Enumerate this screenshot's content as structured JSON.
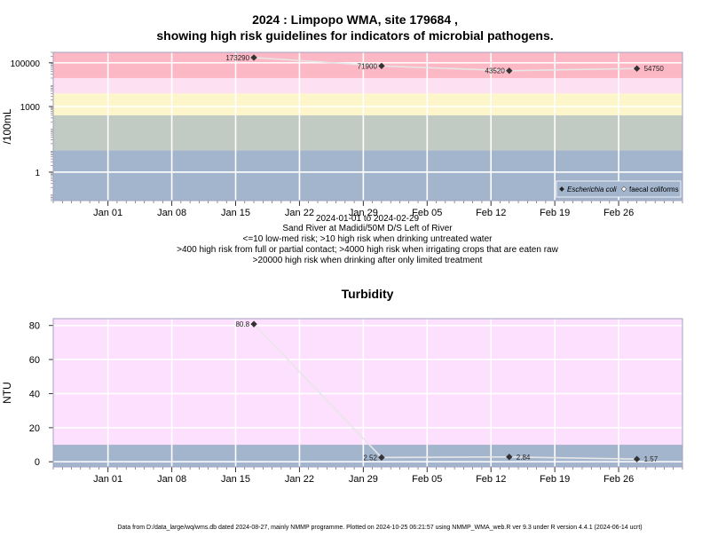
{
  "page": {
    "title_line1": "2024 : Limpopo WMA, site 179684 ,",
    "title_line2": "showing high risk guidelines for indicators of microbial pathogens.",
    "footer": "Data from D:/data_large/wq/wms.db dated 2024-08-27, mainly NMMP programme. Plotted on 2024-10-25 06:21:57 using NMMP_WMA_web.R ver 9.3 under R version 4.4.1 (2024-06-14 ucrt)"
  },
  "notes": [
    "2024-01-01 to 2024-02-29",
    "Sand River at Madidi/50M D/S Left of River",
    "<=10 low-med risk; >10 high risk when drinking untreated water",
    ">400 high risk from full or partial contact; >4000 high risk when irrigating crops that are eaten raw",
    ">20000 high risk when drinking after only limited treatment"
  ],
  "chart_data": [
    {
      "type": "line",
      "title": "",
      "ylabel": "/100mL",
      "y_scale": "log10",
      "ylim": [
        0.05,
        300000
      ],
      "xlim": [
        "2023-12-26",
        "2024-03-04"
      ],
      "x_ticks": [
        {
          "date": "2024-01-01",
          "label": "Jan 01"
        },
        {
          "date": "2024-01-08",
          "label": "Jan 08"
        },
        {
          "date": "2024-01-15",
          "label": "Jan 15"
        },
        {
          "date": "2024-01-22",
          "label": "Jan 22"
        },
        {
          "date": "2024-01-29",
          "label": "Jan 29"
        },
        {
          "date": "2024-02-05",
          "label": "Feb 05"
        },
        {
          "date": "2024-02-12",
          "label": "Feb 12"
        },
        {
          "date": "2024-02-19",
          "label": "Feb 19"
        },
        {
          "date": "2024-02-26",
          "label": "Feb 26"
        }
      ],
      "y_ticks": [
        {
          "value": 1,
          "label": "1"
        },
        {
          "value": 1000,
          "label": "1000"
        },
        {
          "value": 100000,
          "label": "100000"
        }
      ],
      "bands": [
        {
          "from": 0.05,
          "to": 10,
          "color": "#a3b4cd"
        },
        {
          "from": 10,
          "to": 400,
          "color": "#c2cbc3"
        },
        {
          "from": 400,
          "to": 4000,
          "color": "#fdf6cb"
        },
        {
          "from": 4000,
          "to": 20000,
          "color": "#fde0f2"
        },
        {
          "from": 20000,
          "to": 300000,
          "color": "#fdb8c6"
        }
      ],
      "grid": true,
      "legend": {
        "placement": "bottom-right",
        "entries": [
          "Escherichia coli",
          "faecal coliforms"
        ]
      },
      "series": [
        {
          "name": "Escherichia coli",
          "color": "#333333",
          "points": [
            {
              "x": "2024-01-17",
              "y": 173290,
              "label": "173290"
            },
            {
              "x": "2024-01-31",
              "y": 71900,
              "label": "71900"
            },
            {
              "x": "2024-02-14",
              "y": 43520,
              "label": "43520"
            },
            {
              "x": "2024-02-28",
              "y": 54750,
              "label": "54750"
            }
          ]
        }
      ]
    },
    {
      "type": "line",
      "title": "Turbidity",
      "ylabel": "NTU",
      "y_scale": "linear",
      "ylim": [
        -3,
        84
      ],
      "xlim": [
        "2023-12-26",
        "2024-03-04"
      ],
      "x_ticks": [
        {
          "date": "2024-01-01",
          "label": "Jan 01"
        },
        {
          "date": "2024-01-08",
          "label": "Jan 08"
        },
        {
          "date": "2024-01-15",
          "label": "Jan 15"
        },
        {
          "date": "2024-01-22",
          "label": "Jan 22"
        },
        {
          "date": "2024-01-29",
          "label": "Jan 29"
        },
        {
          "date": "2024-02-05",
          "label": "Feb 05"
        },
        {
          "date": "2024-02-12",
          "label": "Feb 12"
        },
        {
          "date": "2024-02-19",
          "label": "Feb 19"
        },
        {
          "date": "2024-02-26",
          "label": "Feb 26"
        }
      ],
      "y_ticks": [
        {
          "value": 0,
          "label": "0"
        },
        {
          "value": 20,
          "label": "20"
        },
        {
          "value": 40,
          "label": "40"
        },
        {
          "value": 60,
          "label": "60"
        },
        {
          "value": 80,
          "label": "80"
        }
      ],
      "bands": [
        {
          "from": -3,
          "to": 10,
          "color": "#a3b4cd"
        },
        {
          "from": 10,
          "to": 84,
          "color": "#fde0fd"
        }
      ],
      "grid": true,
      "series": [
        {
          "name": "",
          "color": "#333333",
          "points": [
            {
              "x": "2024-01-17",
              "y": 80.8,
              "label": "80.8"
            },
            {
              "x": "2024-01-31",
              "y": 2.52,
              "label": "2.52"
            },
            {
              "x": "2024-02-14",
              "y": 2.84,
              "label": "2.84"
            },
            {
              "x": "2024-02-28",
              "y": 1.57,
              "label": "1.57"
            }
          ]
        }
      ]
    }
  ]
}
